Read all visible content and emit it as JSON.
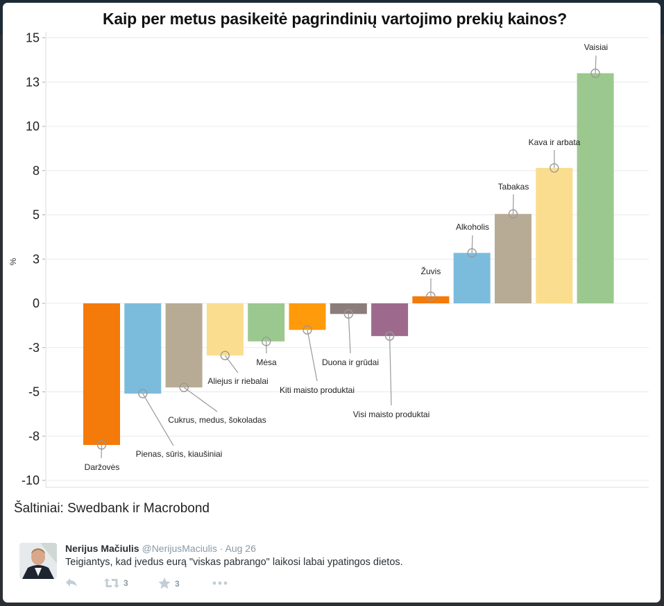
{
  "chart_data": {
    "type": "bar",
    "title": "Kaip per metus pasikeitė pagrindinių vartojimo prekių kainos?",
    "xlabel": "",
    "ylabel": "%",
    "ylim": [
      -10.5,
      15
    ],
    "yticks": [
      15,
      12.5,
      10,
      7.5,
      5,
      2.5,
      0,
      -2.5,
      -5,
      -7.5,
      -10
    ],
    "ytick_labels": [
      "15",
      "13",
      "10",
      "8",
      "5",
      "3",
      "0",
      "-3",
      "-5",
      "-8",
      "-10"
    ],
    "grid": true,
    "categories": [
      "Daržovės",
      "Pienas, sūris, kiaušiniai",
      "Cukrus, medus, šokoladas",
      "Aliejus ir riebalai",
      "Mėsa",
      "Kiti maisto produktai",
      "Duona ir grūdai",
      "Visi maisto produktai",
      "Žuvis",
      "Alkoholis",
      "Tabakas",
      "Kava ir arbata",
      "Vaisiai"
    ],
    "values": [
      -8.0,
      -5.1,
      -4.75,
      -2.95,
      -2.15,
      -1.5,
      -0.6,
      -1.85,
      0.4,
      2.85,
      5.05,
      7.65,
      13.0
    ],
    "colors": [
      "#f47a0a",
      "#7bbcdd",
      "#b8ab95",
      "#fadd8e",
      "#9bc88f",
      "#ff9a0b",
      "#8b7d7b",
      "#9d6a8d",
      "#f47a0a",
      "#7bbcdd",
      "#b8ab95",
      "#fadd8e",
      "#9bc88f"
    ],
    "source": "Šaltiniai: Swedbank ir Macrobond"
  },
  "tweet": {
    "name": "Nerijus Mačiulis",
    "handle": "@NerijusMaciulis",
    "separator": " · ",
    "date": "Aug 26",
    "text": "Teigiantys, kad įvedus eurą \"viskas pabrango\" laikosi labai ypatingos dietos.",
    "retweets": "3",
    "favorites": "3",
    "icons": [
      "reply-icon",
      "retweet-icon",
      "favorite-star-icon",
      "more-dots-icon"
    ]
  }
}
